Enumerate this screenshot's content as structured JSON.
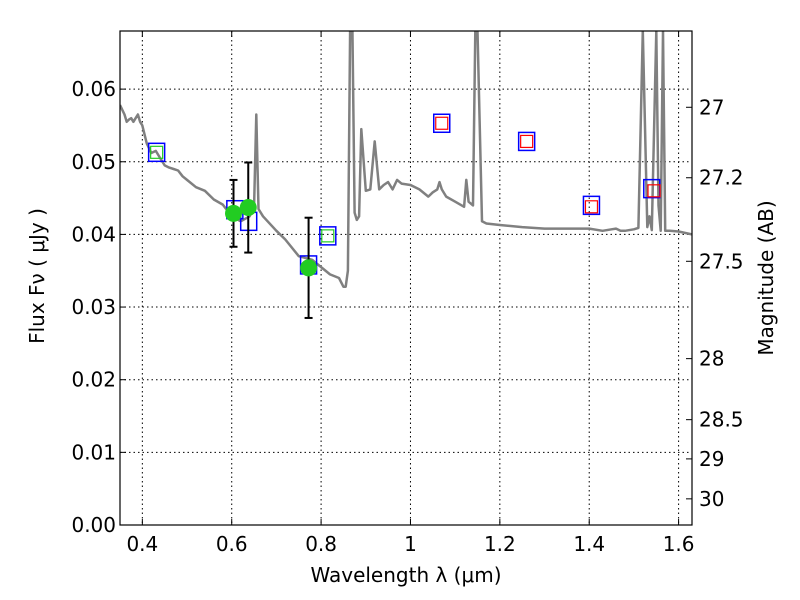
{
  "chart_data": {
    "type": "scatter",
    "xlabel": "Wavelength  λ (μm)",
    "ylabel_left": "Flux  Fν  ( μJy )",
    "ylabel_right": "Magnitude (AB)",
    "xlim": [
      0.35,
      1.63
    ],
    "ylim": [
      0.0,
      0.068
    ],
    "grid": true,
    "x_ticks": [
      0.4,
      0.6,
      0.8,
      1.0,
      1.2,
      1.4,
      1.6
    ],
    "x_tick_labels": [
      "0.4",
      "0.6",
      "0.8",
      "1",
      "1.2",
      "1.4",
      "1.6"
    ],
    "y_ticks": [
      0.0,
      0.01,
      0.02,
      0.03,
      0.04,
      0.05,
      0.06
    ],
    "y_tick_labels": [
      "0.00",
      "0.01",
      "0.02",
      "0.03",
      "0.04",
      "0.05",
      "0.06"
    ],
    "right_ticks": [
      {
        "label": "27",
        "flux": 0.0575
      },
      {
        "label": "27.2",
        "flux": 0.0478
      },
      {
        "label": "27.5",
        "flux": 0.0363
      },
      {
        "label": "28",
        "flux": 0.0229
      },
      {
        "label": "28.5",
        "flux": 0.0145
      },
      {
        "label": "29",
        "flux": 0.0091
      },
      {
        "label": "30",
        "flux": 0.0036
      }
    ],
    "colors": {
      "model": "#808080",
      "observed": "#22cc22",
      "blue_box": "#0000ff",
      "red_box": "#ff0000",
      "errorbar": "#000000"
    },
    "series": [
      {
        "kind": "model_sed_line",
        "x": [
          0.35,
          0.36,
          0.365,
          0.37,
          0.375,
          0.38,
          0.385,
          0.39,
          0.395,
          0.4,
          0.41,
          0.42,
          0.43,
          0.44,
          0.45,
          0.46,
          0.47,
          0.48,
          0.49,
          0.5,
          0.52,
          0.54,
          0.56,
          0.58,
          0.6,
          0.62,
          0.64,
          0.65,
          0.655,
          0.66,
          0.67,
          0.7,
          0.72,
          0.75,
          0.78,
          0.8,
          0.82,
          0.84,
          0.85,
          0.855,
          0.86,
          0.865,
          0.87,
          0.875,
          0.88,
          0.885,
          0.89,
          0.9,
          0.91,
          0.92,
          0.93,
          0.94,
          0.95,
          0.96,
          0.97,
          0.98,
          1.0,
          1.02,
          1.04,
          1.05,
          1.06,
          1.065,
          1.07,
          1.08,
          1.1,
          1.12,
          1.125,
          1.13,
          1.14,
          1.145,
          1.15,
          1.16,
          1.17,
          1.2,
          1.25,
          1.3,
          1.35,
          1.4,
          1.43,
          1.45,
          1.46,
          1.47,
          1.48,
          1.5,
          1.51,
          1.52,
          1.53,
          1.535,
          1.54,
          1.55,
          1.555,
          1.56,
          1.565,
          1.57,
          1.58,
          1.6,
          1.63
        ],
        "y": [
          0.0578,
          0.0565,
          0.0555,
          0.0558,
          0.056,
          0.0555,
          0.056,
          0.0565,
          0.0555,
          0.055,
          0.0525,
          0.0512,
          0.0515,
          0.0505,
          0.0495,
          0.0492,
          0.049,
          0.0488,
          0.048,
          0.0475,
          0.0465,
          0.046,
          0.0448,
          0.0441,
          0.0425,
          0.0418,
          0.0425,
          0.044,
          0.0565,
          0.0435,
          0.0425,
          0.0405,
          0.0393,
          0.037,
          0.0365,
          0.0355,
          0.0345,
          0.034,
          0.0328,
          0.0328,
          0.035,
          0.068,
          0.0685,
          0.043,
          0.042,
          0.0425,
          0.0545,
          0.046,
          0.0462,
          0.0528,
          0.0462,
          0.0468,
          0.0472,
          0.0462,
          0.0475,
          0.047,
          0.0468,
          0.0462,
          0.0452,
          0.0458,
          0.0462,
          0.0472,
          0.0462,
          0.0452,
          0.0445,
          0.0438,
          0.0475,
          0.0445,
          0.044,
          0.068,
          0.068,
          0.0418,
          0.0415,
          0.0413,
          0.041,
          0.0408,
          0.0408,
          0.0408,
          0.0405,
          0.0407,
          0.0408,
          0.0405,
          0.0405,
          0.0407,
          0.0409,
          0.068,
          0.041,
          0.0425,
          0.0406,
          0.068,
          0.044,
          0.0405,
          0.068,
          0.0405,
          0.0405,
          0.0404,
          0.04
        ]
      },
      {
        "kind": "model_bandpass_blue_boxes",
        "x": [
          0.432,
          0.607,
          0.638,
          0.772,
          0.815,
          1.07,
          1.26,
          1.405,
          1.54
        ],
        "y": [
          0.0513,
          0.0434,
          0.0418,
          0.0358,
          0.0398,
          0.0553,
          0.0528,
          0.044,
          0.0463
        ]
      },
      {
        "kind": "model_bandpass_red_boxes",
        "x": [
          1.07,
          1.26,
          1.405,
          1.545
        ],
        "y": [
          0.0553,
          0.0528,
          0.0438,
          0.046
        ]
      },
      {
        "kind": "model_bandpass_green_boxes",
        "x": [
          0.432,
          0.815
        ],
        "y": [
          0.0513,
          0.0398
        ]
      },
      {
        "kind": "observed_points",
        "x": [
          0.604,
          0.637,
          0.772
        ],
        "y": [
          0.0429,
          0.0437,
          0.0354
        ],
        "err": [
          0.0046,
          0.0062,
          0.0069
        ]
      }
    ]
  }
}
